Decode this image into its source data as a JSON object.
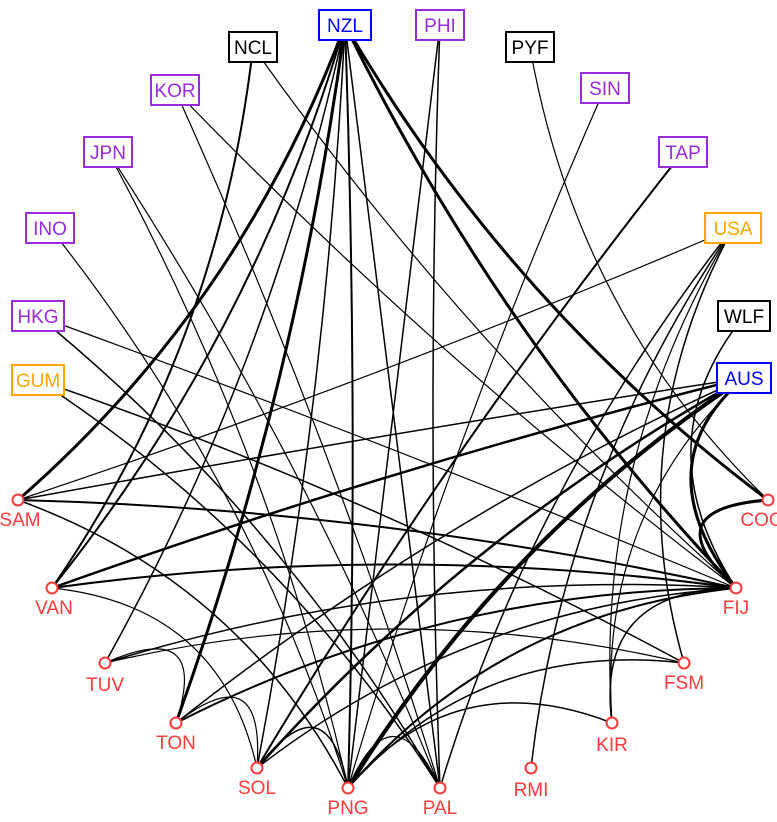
{
  "colors": {
    "pacific_island": "#ff3b3b",
    "donor_blue": "#0000ff",
    "donor_purple": "#9a2bdb",
    "donor_orange": "#ffa500",
    "territory_black": "#000000",
    "edge": "#000000"
  },
  "nodes": [
    {
      "id": "NZL",
      "label": "NZL",
      "group": "donor_blue",
      "shape": "box"
    },
    {
      "id": "PHI",
      "label": "PHI",
      "group": "donor_purple",
      "shape": "box"
    },
    {
      "id": "NCL",
      "label": "NCL",
      "group": "territory_black",
      "shape": "box"
    },
    {
      "id": "PYF",
      "label": "PYF",
      "group": "territory_black",
      "shape": "box"
    },
    {
      "id": "KOR",
      "label": "KOR",
      "group": "donor_purple",
      "shape": "box"
    },
    {
      "id": "SIN",
      "label": "SIN",
      "group": "donor_purple",
      "shape": "box"
    },
    {
      "id": "JPN",
      "label": "JPN",
      "group": "donor_purple",
      "shape": "box"
    },
    {
      "id": "TAP",
      "label": "TAP",
      "group": "donor_purple",
      "shape": "box"
    },
    {
      "id": "INO",
      "label": "INO",
      "group": "donor_purple",
      "shape": "box"
    },
    {
      "id": "USA",
      "label": "USA",
      "group": "donor_orange",
      "shape": "box"
    },
    {
      "id": "HKG",
      "label": "HKG",
      "group": "donor_purple",
      "shape": "box"
    },
    {
      "id": "WLF",
      "label": "WLF",
      "group": "territory_black",
      "shape": "box"
    },
    {
      "id": "GUM",
      "label": "GUM",
      "group": "donor_orange",
      "shape": "box"
    },
    {
      "id": "AUS",
      "label": "AUS",
      "group": "donor_blue",
      "shape": "box"
    },
    {
      "id": "SAM",
      "label": "SAM",
      "group": "pacific_island",
      "shape": "circle"
    },
    {
      "id": "COO",
      "label": "COO",
      "group": "pacific_island",
      "shape": "circle"
    },
    {
      "id": "VAN",
      "label": "VAN",
      "group": "pacific_island",
      "shape": "circle"
    },
    {
      "id": "FIJ",
      "label": "FIJ",
      "group": "pacific_island",
      "shape": "circle"
    },
    {
      "id": "TUV",
      "label": "TUV",
      "group": "pacific_island",
      "shape": "circle"
    },
    {
      "id": "FSM",
      "label": "FSM",
      "group": "pacific_island",
      "shape": "circle"
    },
    {
      "id": "TON",
      "label": "TON",
      "group": "pacific_island",
      "shape": "circle"
    },
    {
      "id": "KIR",
      "label": "KIR",
      "group": "pacific_island",
      "shape": "circle"
    },
    {
      "id": "SOL",
      "label": "SOL",
      "group": "pacific_island",
      "shape": "circle"
    },
    {
      "id": "RMI",
      "label": "RMI",
      "group": "pacific_island",
      "shape": "circle"
    },
    {
      "id": "PNG",
      "label": "PNG",
      "group": "pacific_island",
      "shape": "circle"
    },
    {
      "id": "PAL",
      "label": "PAL",
      "group": "pacific_island",
      "shape": "circle"
    }
  ],
  "edges": [
    {
      "s": "NZL",
      "t": "SAM",
      "w": 3
    },
    {
      "s": "NZL",
      "t": "VAN",
      "w": 2
    },
    {
      "s": "NZL",
      "t": "TON",
      "w": 3
    },
    {
      "s": "NZL",
      "t": "PNG",
      "w": 2
    },
    {
      "s": "NZL",
      "t": "SOL",
      "w": 1.5
    },
    {
      "s": "NZL",
      "t": "FIJ",
      "w": 3
    },
    {
      "s": "NZL",
      "t": "COO",
      "w": 3
    },
    {
      "s": "NZL",
      "t": "PAL",
      "w": 1.5
    },
    {
      "s": "NZL",
      "t": "TUV",
      "w": 1.5
    },
    {
      "s": "PHI",
      "t": "PNG",
      "w": 1.5
    },
    {
      "s": "PHI",
      "t": "PAL",
      "w": 1.5
    },
    {
      "s": "NCL",
      "t": "VAN",
      "w": 2
    },
    {
      "s": "NCL",
      "t": "FIJ",
      "w": 1.2
    },
    {
      "s": "PYF",
      "t": "COO",
      "w": 1.2
    },
    {
      "s": "KOR",
      "t": "PAL",
      "w": 1.2
    },
    {
      "s": "KOR",
      "t": "FIJ",
      "w": 1.2
    },
    {
      "s": "SIN",
      "t": "PNG",
      "w": 1.2
    },
    {
      "s": "JPN",
      "t": "PNG",
      "w": 1.2
    },
    {
      "s": "JPN",
      "t": "PAL",
      "w": 1.2
    },
    {
      "s": "TAP",
      "t": "SOL",
      "w": 2
    },
    {
      "s": "INO",
      "t": "PNG",
      "w": 1.2
    },
    {
      "s": "USA",
      "t": "SAM",
      "w": 1.2
    },
    {
      "s": "USA",
      "t": "FSM",
      "w": 1.5
    },
    {
      "s": "USA",
      "t": "RMI",
      "w": 1.5
    },
    {
      "s": "USA",
      "t": "PAL",
      "w": 1.5
    },
    {
      "s": "USA",
      "t": "KIR",
      "w": 1.2
    },
    {
      "s": "HKG",
      "t": "PAL",
      "w": 1.5
    },
    {
      "s": "HKG",
      "t": "FIJ",
      "w": 1.2
    },
    {
      "s": "WLF",
      "t": "FIJ",
      "w": 1.5
    },
    {
      "s": "GUM",
      "t": "FSM",
      "w": 1.5
    },
    {
      "s": "GUM",
      "t": "PAL",
      "w": 1.5
    },
    {
      "s": "AUS",
      "t": "PNG",
      "w": 4
    },
    {
      "s": "AUS",
      "t": "SOL",
      "w": 2.5
    },
    {
      "s": "AUS",
      "t": "VAN",
      "w": 2.5
    },
    {
      "s": "AUS",
      "t": "SAM",
      "w": 1.5
    },
    {
      "s": "AUS",
      "t": "FIJ",
      "w": 3
    },
    {
      "s": "AUS",
      "t": "TON",
      "w": 1.5
    },
    {
      "s": "AUS",
      "t": "KIR",
      "w": 1.2
    },
    {
      "s": "FIJ",
      "t": "SAM",
      "w": 2
    },
    {
      "s": "FIJ",
      "t": "VAN",
      "w": 2
    },
    {
      "s": "FIJ",
      "t": "TUV",
      "w": 1.5
    },
    {
      "s": "FIJ",
      "t": "TON",
      "w": 2
    },
    {
      "s": "FIJ",
      "t": "SOL",
      "w": 1.5
    },
    {
      "s": "FIJ",
      "t": "PNG",
      "w": 2
    },
    {
      "s": "FIJ",
      "t": "KIR",
      "w": 1.5
    },
    {
      "s": "FIJ",
      "t": "COO",
      "w": 3
    },
    {
      "s": "FSM",
      "t": "TUV",
      "w": 1.2
    },
    {
      "s": "FSM",
      "t": "PNG",
      "w": 1.5
    },
    {
      "s": "KIR",
      "t": "PNG",
      "w": 1.5
    },
    {
      "s": "SAM",
      "t": "PNG",
      "w": 1.5
    },
    {
      "s": "VAN",
      "t": "SOL",
      "w": 1.2
    },
    {
      "s": "TON",
      "t": "SOL",
      "w": 1.2
    },
    {
      "s": "SOL",
      "t": "PNG",
      "w": 1.5
    },
    {
      "s": "PNG",
      "t": "PAL",
      "w": 1.2
    },
    {
      "s": "TUV",
      "t": "TON",
      "w": 1.2
    }
  ]
}
